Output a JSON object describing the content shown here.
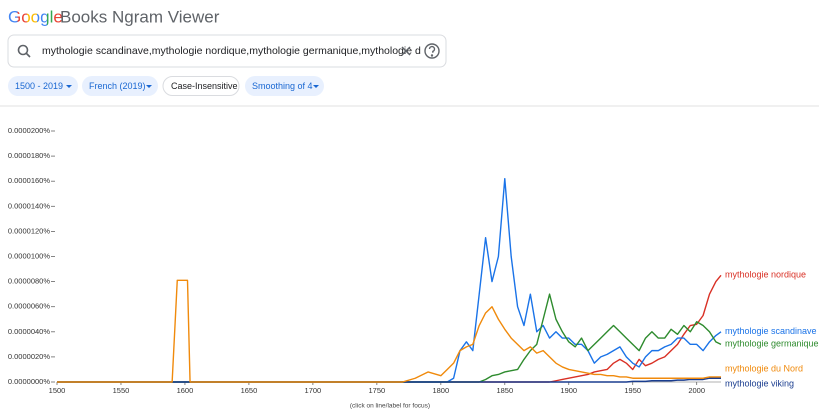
{
  "header": {
    "logo": "Google",
    "title": "Books Ngram Viewer"
  },
  "search": {
    "query": "mythologie scandinave,mythologie nordique,mythologie germanique,mythologie d"
  },
  "filters": [
    "1500 - 2019",
    "French (2019)",
    "Case-Insensitive",
    "Smoothing of 4"
  ],
  "chart_data": {
    "type": "line",
    "note": "(click on line/label for focus)",
    "grid": false,
    "x": [
      1500,
      1590,
      1594,
      1596,
      1602,
      1604,
      1608,
      1700,
      1770,
      1780,
      1790,
      1800,
      1805,
      1810,
      1815,
      1820,
      1825,
      1830,
      1835,
      1840,
      1845,
      1850,
      1855,
      1860,
      1865,
      1870,
      1875,
      1880,
      1885,
      1890,
      1895,
      1900,
      1905,
      1910,
      1915,
      1920,
      1925,
      1930,
      1935,
      1940,
      1945,
      1950,
      1955,
      1960,
      1965,
      1970,
      1975,
      1980,
      1985,
      1990,
      1995,
      2000,
      2005,
      2010,
      2015,
      2019
    ],
    "xlim": [
      1500,
      2019
    ],
    "xticks": [
      1500,
      1550,
      1600,
      1650,
      1700,
      1750,
      1800,
      1850,
      1900,
      1950,
      2000
    ],
    "ylim": [
      0,
      2e-05
    ],
    "yticks": [
      {
        "value": 0,
        "label": "0.0000000%"
      },
      {
        "value": 2e-06,
        "label": "0.0000020%"
      },
      {
        "value": 4e-06,
        "label": "0.0000040%"
      },
      {
        "value": 6e-06,
        "label": "0.0000060%"
      },
      {
        "value": 8e-06,
        "label": "0.0000080%"
      },
      {
        "value": 1e-05,
        "label": "0.0000100%"
      },
      {
        "value": 1.2e-05,
        "label": "0.0000120%"
      },
      {
        "value": 1.4e-05,
        "label": "0.0000140%"
      },
      {
        "value": 1.6e-05,
        "label": "0.0000160%"
      },
      {
        "value": 1.8e-05,
        "label": "0.0000180%"
      },
      {
        "value": 2e-05,
        "label": "0.0000200%"
      }
    ],
    "series": [
      {
        "name": "mythologie nordique",
        "color": "#d93025",
        "values": [
          0,
          0,
          0,
          0,
          0,
          0,
          0,
          0,
          0,
          0,
          0,
          0,
          0,
          0,
          0,
          0,
          0,
          0,
          0,
          0,
          0,
          0,
          0,
          0,
          0,
          0,
          0,
          0,
          0,
          1e-07,
          2e-07,
          3e-07,
          4e-07,
          5e-07,
          6e-07,
          8e-07,
          9e-07,
          1e-06,
          1.5e-06,
          1.8e-06,
          1.5e-06,
          1e-06,
          1.8e-06,
          1.3e-06,
          1.5e-06,
          1.8e-06,
          2e-06,
          2.5e-06,
          3e-06,
          3.8e-06,
          4.5e-06,
          4.6e-06,
          5.3e-06,
          7e-06,
          8e-06,
          8.5e-06
        ]
      },
      {
        "name": "mythologie scandinave",
        "color": "#1a73e8",
        "values": [
          0,
          0,
          0,
          0,
          0,
          0,
          0,
          0,
          0,
          0,
          0,
          0,
          0,
          3e-07,
          2.5e-06,
          3.2e-06,
          2.5e-06,
          7e-06,
          1.15e-05,
          8e-06,
          1e-05,
          1.62e-05,
          1e-05,
          6e-06,
          4.5e-06,
          7e-06,
          4e-06,
          4.5e-06,
          3.5e-06,
          4e-06,
          3.5e-06,
          3.5e-06,
          3e-06,
          3e-06,
          2.5e-06,
          1.5e-06,
          2e-06,
          2.2e-06,
          2.5e-06,
          2.8e-06,
          2e-06,
          1.5e-06,
          1.2e-06,
          2e-06,
          2.5e-06,
          2.5e-06,
          2.8e-06,
          3e-06,
          3.5e-06,
          3.5e-06,
          3e-06,
          3e-06,
          2.5e-06,
          3.2e-06,
          3.7e-06,
          4e-06
        ]
      },
      {
        "name": "mythologie germanique",
        "color": "#2e8b2e",
        "values": [
          0,
          0,
          0,
          0,
          0,
          0,
          0,
          0,
          0,
          0,
          0,
          0,
          0,
          0,
          0,
          0,
          0,
          0,
          2e-07,
          5e-07,
          6e-07,
          8e-07,
          9e-07,
          1e-06,
          1.8e-06,
          2.5e-06,
          3e-06,
          5e-06,
          7e-06,
          5e-06,
          4e-06,
          3.2e-06,
          2.8e-06,
          3.5e-06,
          2.5e-06,
          3e-06,
          3.5e-06,
          4e-06,
          4.5e-06,
          4e-06,
          3.5e-06,
          3e-06,
          2.5e-06,
          3.5e-06,
          4e-06,
          3.5e-06,
          3.5e-06,
          4.2e-06,
          3.8e-06,
          4.5e-06,
          4e-06,
          4.8e-06,
          4.5e-06,
          4e-06,
          3.2e-06,
          3e-06
        ]
      },
      {
        "name": "mythologie viking",
        "color": "#1a3d8f",
        "values": [
          0,
          0,
          0,
          0,
          0,
          0,
          0,
          0,
          0,
          0,
          0,
          0,
          0,
          0,
          0,
          0,
          0,
          0,
          0,
          0,
          0,
          0,
          0,
          0,
          0,
          0,
          0,
          0,
          0,
          0,
          0,
          0,
          0,
          0,
          0,
          0,
          0,
          0,
          0,
          0,
          0,
          5e-08,
          5e-08,
          5e-08,
          1e-07,
          1e-07,
          1e-07,
          1e-07,
          1.5e-07,
          1.5e-07,
          2e-07,
          2e-07,
          2e-07,
          3e-07,
          3e-07,
          3e-07
        ]
      },
      {
        "name": "mythologie du Nord",
        "color": "#f08a0c",
        "values": [
          0,
          0,
          8.1e-06,
          8.1e-06,
          8.1e-06,
          0,
          0,
          0,
          0,
          3e-07,
          8e-07,
          5e-07,
          1e-06,
          1.5e-06,
          2.5e-06,
          2.8e-06,
          3e-06,
          4.5e-06,
          5.5e-06,
          6e-06,
          5e-06,
          4.2e-06,
          3.5e-06,
          3e-06,
          2.5e-06,
          2.8e-06,
          2.3e-06,
          2.5e-06,
          2e-06,
          1.5e-06,
          1.2e-06,
          1e-06,
          9e-07,
          8e-07,
          7e-07,
          6e-07,
          6e-07,
          5e-07,
          5e-07,
          4e-07,
          4e-07,
          3e-07,
          3e-07,
          3e-07,
          3e-07,
          3e-07,
          3e-07,
          3e-07,
          3e-07,
          3e-07,
          3e-07,
          3e-07,
          3e-07,
          4e-07,
          4e-07,
          4e-07
        ]
      }
    ]
  }
}
